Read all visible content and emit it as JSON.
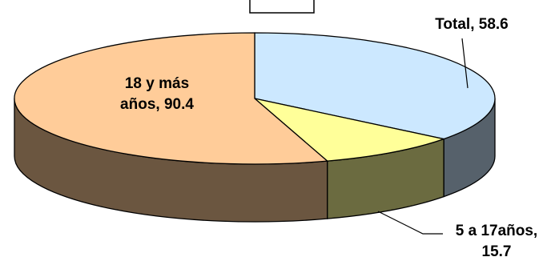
{
  "chart_data": {
    "type": "pie",
    "variant": "3d",
    "title": "",
    "legend": "none",
    "slices": [
      {
        "name": "Total",
        "value": 58.6,
        "color": "#cce8ff",
        "label_lines": [
          "Total, 58.6"
        ]
      },
      {
        "name": "5 a 17años",
        "value": 15.7,
        "color": "#ffff99",
        "label_lines": [
          "5 a 17años,",
          "15.7"
        ]
      },
      {
        "name": "18 y más años",
        "value": 90.4,
        "color": "#ffcc99",
        "label_lines": [
          "18 y más",
          "años, 90.4"
        ]
      }
    ]
  }
}
